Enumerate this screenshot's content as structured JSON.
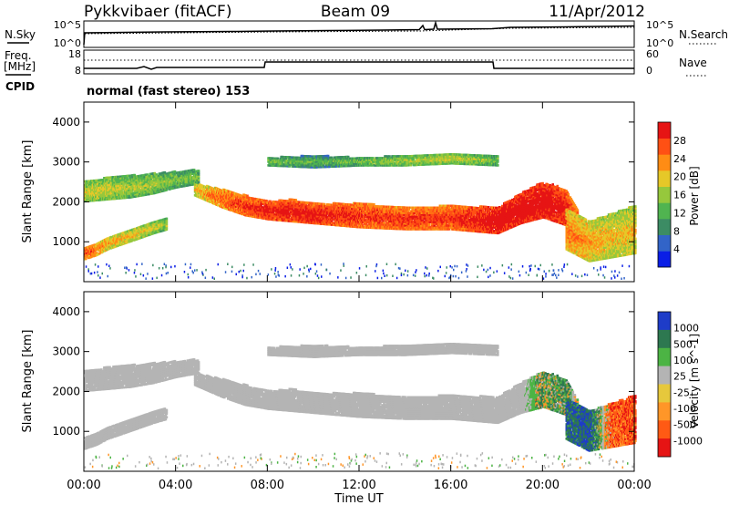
{
  "header": {
    "radar": "Pykkvibaer (fitACF)",
    "beam": "Beam 09",
    "date": "11/Apr/2012"
  },
  "panels": {
    "nsky": {
      "label": "N.Sky",
      "left_ticks": [
        "10^5",
        "10^0"
      ],
      "right_ticks": [
        "10^5",
        "10^0"
      ],
      "right_label": "N.Search"
    },
    "freq": {
      "label": "Freq.",
      "unit": "[MHz]",
      "left_ticks": [
        "18",
        "8"
      ],
      "right_ticks": [
        "60",
        "0"
      ],
      "right_label": "Nave"
    },
    "cpid": {
      "label": "CPID",
      "text": "normal (fast stereo) 153"
    }
  },
  "chart_data": [
    {
      "type": "heatmap",
      "title": "",
      "quantity": "Power",
      "ylabel": "Slant Range [km]",
      "ylim": [
        0,
        4500
      ],
      "yticks": [
        "1000",
        "2000",
        "3000",
        "4000"
      ],
      "xlim_hours": [
        0,
        24
      ],
      "colorbar_label": "Power [dB]",
      "colorbar_ticks": [
        "4",
        "8",
        "12",
        "16",
        "20",
        "24",
        "28"
      ],
      "colorbar_colors": [
        "#0a1ee6",
        "#3264c8",
        "#3c8c64",
        "#50b450",
        "#96c83c",
        "#e6c828",
        "#ff8c14",
        "#ff5014",
        "#e61414"
      ],
      "bands": [
        {
          "t": [
            0.0,
            1.0,
            2.0,
            3.0,
            4.0,
            5.0
          ],
          "y_low": [
            2000,
            2050,
            2100,
            2200,
            2350,
            2450
          ],
          "y_high": [
            2500,
            2600,
            2650,
            2700,
            2750,
            2800
          ],
          "power": [
            14,
            14,
            12,
            12,
            10,
            10
          ]
        },
        {
          "t": [
            0.0,
            0.5,
            1.0,
            2.0,
            3.0,
            3.6
          ],
          "y_low": [
            550,
            650,
            800,
            1000,
            1200,
            1300
          ],
          "y_high": [
            850,
            950,
            1100,
            1300,
            1500,
            1600
          ],
          "power": [
            22,
            20,
            18,
            16,
            14,
            12
          ]
        },
        {
          "t": [
            4.8,
            6.0,
            7.0,
            8.0,
            9.0,
            10.0,
            12.0,
            14.0,
            16.0,
            18.0,
            19.0,
            20.0,
            21.0,
            21.5
          ],
          "y_low": [
            2150,
            1850,
            1650,
            1550,
            1500,
            1450,
            1350,
            1300,
            1300,
            1200,
            1450,
            1600,
            1400,
            900
          ],
          "y_high": [
            2450,
            2300,
            2150,
            2000,
            2050,
            1950,
            1950,
            1850,
            1900,
            1850,
            2200,
            2500,
            2300,
            1800
          ],
          "power": [
            16,
            22,
            24,
            26,
            26,
            26,
            24,
            24,
            24,
            28,
            28,
            28,
            26,
            24
          ]
        },
        {
          "t": [
            21.0,
            22.0,
            23.0,
            24.0
          ],
          "y_low": [
            800,
            500,
            600,
            700
          ],
          "y_high": [
            1800,
            1500,
            1700,
            1900
          ],
          "power": [
            20,
            18,
            16,
            16
          ]
        },
        {
          "t": [
            8.0,
            10.0,
            12.0,
            14.0,
            16.0,
            18.0
          ],
          "y_low": [
            2900,
            2850,
            2900,
            2900,
            2950,
            2900
          ],
          "y_high": [
            3100,
            3150,
            3100,
            3150,
            3200,
            3150
          ],
          "power": [
            10,
            8,
            10,
            12,
            14,
            10
          ]
        }
      ]
    },
    {
      "type": "heatmap",
      "title": "",
      "quantity": "Velocity",
      "ylabel": "Slant Range [km]",
      "ylim": [
        0,
        4500
      ],
      "yticks": [
        "1000",
        "2000",
        "3000",
        "4000"
      ],
      "xlim_hours": [
        0,
        24
      ],
      "xticks": [
        "00:00",
        "04:00",
        "08:00",
        "12:00",
        "16:00",
        "20:00",
        "00:00"
      ],
      "xlabel": "Time UT",
      "colorbar_label": "Velocity [m s^-1]",
      "colorbar_ticks": [
        "1000",
        "500",
        "100",
        "25",
        "-25",
        "-100",
        "-500",
        "-1000"
      ],
      "colorbar_colors": [
        "#1e3cc8",
        "#2d7850",
        "#4cb444",
        "#b4b4b4",
        "#e6c83c",
        "#ff9628",
        "#ff5a14",
        "#e61414"
      ],
      "bands": [
        {
          "t": [
            0.0,
            1.0,
            2.0,
            3.0,
            4.0,
            5.0
          ],
          "y_low": [
            2000,
            2050,
            2100,
            2200,
            2350,
            2450
          ],
          "y_high": [
            2500,
            2600,
            2650,
            2700,
            2750,
            2800
          ],
          "velocity": [
            0,
            0,
            0,
            0,
            0,
            0
          ]
        },
        {
          "t": [
            0.0,
            0.5,
            1.0,
            2.0,
            3.0,
            3.6
          ],
          "y_low": [
            550,
            650,
            800,
            1000,
            1200,
            1300
          ],
          "y_high": [
            850,
            950,
            1100,
            1300,
            1500,
            1600
          ],
          "velocity": [
            0,
            0,
            0,
            0,
            0,
            0
          ]
        },
        {
          "t": [
            4.8,
            6.0,
            7.0,
            8.0,
            9.0,
            10.0,
            12.0,
            14.0,
            16.0,
            18.0,
            19.0,
            20.0,
            21.0,
            21.5
          ],
          "y_low": [
            2150,
            1850,
            1650,
            1550,
            1500,
            1450,
            1350,
            1300,
            1300,
            1200,
            1450,
            1600,
            1400,
            900
          ],
          "y_high": [
            2450,
            2300,
            2150,
            2000,
            2050,
            1950,
            1950,
            1850,
            1900,
            1850,
            2200,
            2500,
            2300,
            1800
          ],
          "velocity": [
            0,
            0,
            0,
            0,
            0,
            0,
            0,
            0,
            0,
            0,
            0,
            150,
            300,
            -200
          ]
        },
        {
          "t": [
            21.0,
            22.0,
            23.0,
            24.0
          ],
          "y_low": [
            800,
            500,
            600,
            700
          ],
          "y_high": [
            1800,
            1500,
            1700,
            1900
          ],
          "velocity": [
            600,
            800,
            -500,
            -600
          ]
        },
        {
          "t": [
            8.0,
            10.0,
            12.0,
            14.0,
            16.0,
            18.0
          ],
          "y_low": [
            2900,
            2850,
            2900,
            2900,
            2950,
            2900
          ],
          "y_high": [
            3100,
            3150,
            3100,
            3150,
            3200,
            3150
          ],
          "velocity": [
            0,
            0,
            0,
            0,
            0,
            0
          ]
        }
      ]
    }
  ]
}
